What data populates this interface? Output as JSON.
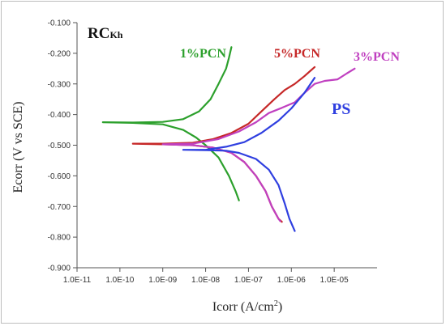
{
  "chart_data": {
    "type": "line",
    "title": "RC",
    "title_subscript": "Kh",
    "xlabel": "Icorr (A/cm",
    "xlabel_sup": "2",
    "xlabel_tail": ")",
    "ylabel": "Ecorr (V vs SCE)",
    "xscale": "log",
    "xlim": [
      1e-11,
      0.0001
    ],
    "ylim": [
      -0.9,
      -0.1
    ],
    "grid": false,
    "x_tick_values": [
      1e-11,
      1e-10,
      1e-09,
      1e-08,
      1e-07,
      1e-06,
      1e-05
    ],
    "x_tick_labels": [
      "1.0E-11",
      "1.0E-10",
      "1.0E-09",
      "1.0E-08",
      "1.0E-07",
      "1.0E-06",
      "1.0E-05"
    ],
    "y_tick_values": [
      -0.9,
      -0.8,
      -0.7,
      -0.6,
      -0.5,
      -0.4,
      -0.3,
      -0.2,
      -0.1
    ],
    "y_tick_labels": [
      "-0.900",
      "-0.800",
      "-0.700",
      "-0.600",
      "-0.500",
      "-0.400",
      "-0.300",
      "-0.200",
      "-0.100"
    ],
    "series": [
      {
        "name": "1%PCN",
        "color": "#2ca02c",
        "points": [
          [
            4e-11,
            -0.425
          ],
          [
            2e-10,
            -0.426
          ],
          [
            1e-09,
            -0.424
          ],
          [
            3e-09,
            -0.415
          ],
          [
            7e-09,
            -0.39
          ],
          [
            1.3e-08,
            -0.35
          ],
          [
            2e-08,
            -0.3
          ],
          [
            3e-08,
            -0.25
          ],
          [
            3.5e-08,
            -0.215
          ],
          [
            4e-08,
            -0.18
          ],
          null,
          [
            4e-11,
            -0.425
          ],
          [
            2e-10,
            -0.427
          ],
          [
            1e-09,
            -0.432
          ],
          [
            3e-09,
            -0.45
          ],
          [
            6e-09,
            -0.475
          ],
          [
            1e-08,
            -0.5
          ],
          [
            2e-08,
            -0.54
          ],
          [
            3.5e-08,
            -0.6
          ],
          [
            5e-08,
            -0.65
          ],
          [
            6e-08,
            -0.68
          ]
        ]
      },
      {
        "name": "5%PCN",
        "color": "#c62828",
        "points": [
          [
            2e-10,
            -0.495
          ],
          [
            1e-09,
            -0.495
          ],
          [
            5e-09,
            -0.492
          ],
          [
            1.5e-08,
            -0.48
          ],
          [
            4e-08,
            -0.46
          ],
          [
            1e-07,
            -0.43
          ],
          [
            2e-07,
            -0.39
          ],
          [
            4e-07,
            -0.35
          ],
          [
            7e-07,
            -0.32
          ],
          [
            1.2e-06,
            -0.3
          ],
          [
            2e-06,
            -0.275
          ],
          [
            3.5e-06,
            -0.245
          ],
          null,
          [
            2e-10,
            -0.495
          ],
          [
            1e-09,
            -0.497
          ],
          [
            5e-09,
            -0.5
          ],
          [
            1.5e-08,
            -0.508
          ],
          [
            4e-08,
            -0.525
          ],
          [
            8e-08,
            -0.555
          ],
          [
            1.5e-07,
            -0.6
          ],
          [
            2.5e-07,
            -0.65
          ],
          [
            3.5e-07,
            -0.7
          ],
          [
            5e-07,
            -0.74
          ],
          [
            6e-07,
            -0.75
          ]
        ]
      },
      {
        "name": "3%PCN",
        "color": "#c040c0",
        "points": [
          [
            1e-09,
            -0.497
          ],
          [
            5e-09,
            -0.495
          ],
          [
            2e-08,
            -0.48
          ],
          [
            6e-08,
            -0.455
          ],
          [
            1.5e-07,
            -0.425
          ],
          [
            3e-07,
            -0.395
          ],
          [
            6e-07,
            -0.378
          ],
          [
            1.2e-06,
            -0.36
          ],
          [
            2e-06,
            -0.33
          ],
          [
            3.5e-06,
            -0.3
          ],
          [
            6e-06,
            -0.29
          ],
          [
            1.2e-05,
            -0.285
          ],
          [
            2e-05,
            -0.265
          ],
          [
            3e-05,
            -0.25
          ],
          null,
          [
            1e-09,
            -0.497
          ],
          [
            5e-09,
            -0.5
          ],
          [
            1.5e-08,
            -0.508
          ],
          [
            4e-08,
            -0.525
          ],
          [
            8e-08,
            -0.555
          ],
          [
            1.5e-07,
            -0.6
          ],
          [
            2.5e-07,
            -0.65
          ],
          [
            3.5e-07,
            -0.7
          ],
          [
            5e-07,
            -0.74
          ],
          [
            5.5e-07,
            -0.748
          ]
        ]
      },
      {
        "name": "PS",
        "color": "#2f3fe0",
        "points": [
          [
            3e-09,
            -0.515
          ],
          [
            1e-08,
            -0.515
          ],
          [
            3e-08,
            -0.505
          ],
          [
            8e-08,
            -0.49
          ],
          [
            2e-07,
            -0.46
          ],
          [
            5e-07,
            -0.42
          ],
          [
            1e-06,
            -0.38
          ],
          [
            2e-06,
            -0.33
          ],
          [
            3.5e-06,
            -0.28
          ],
          null,
          [
            3e-09,
            -0.515
          ],
          [
            1e-08,
            -0.516
          ],
          [
            3e-08,
            -0.518
          ],
          [
            6e-08,
            -0.525
          ],
          [
            1.5e-07,
            -0.545
          ],
          [
            3e-07,
            -0.58
          ],
          [
            5e-07,
            -0.63
          ],
          [
            7e-07,
            -0.69
          ],
          [
            9e-07,
            -0.74
          ],
          [
            1.2e-06,
            -0.78
          ]
        ]
      }
    ],
    "annotations": [
      {
        "text": "1%PCN",
        "color": "#2ca02c"
      },
      {
        "text": "5%PCN",
        "color": "#c62828"
      },
      {
        "text": "3%PCN",
        "color": "#c040c0"
      },
      {
        "text": "PS",
        "color": "#2f3fe0"
      }
    ]
  }
}
